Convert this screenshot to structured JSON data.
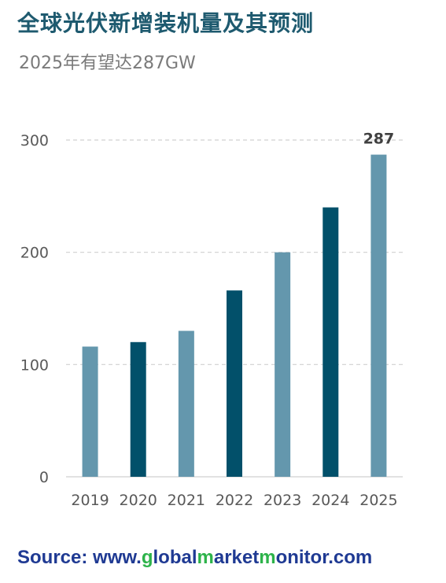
{
  "header": {
    "title": "全球光伏新增装机量及其预测",
    "subtitle": "2025年有望达287GW"
  },
  "footer": {
    "label": "Source:",
    "site_parts": [
      "www.",
      "g",
      "lobal",
      "m",
      "arket",
      "m",
      "onitor",
      ".com"
    ]
  },
  "chart_data": {
    "type": "bar",
    "title": "全球光伏新增装机量及其预测",
    "subtitle": "2025年有望达287GW",
    "categories": [
      "2019",
      "2020",
      "2021",
      "2022",
      "2023",
      "2024",
      "2025"
    ],
    "values": [
      116,
      120,
      130,
      166,
      200,
      240,
      287
    ],
    "colors": [
      "#6497ad",
      "#02506a",
      "#6497ad",
      "#02506a",
      "#6497ad",
      "#02506a",
      "#6497ad"
    ],
    "data_labels": [
      {
        "category": "2025",
        "text": "287"
      }
    ],
    "yticks": [
      0,
      100,
      200,
      300
    ],
    "ylim": [
      0,
      300
    ],
    "xlabel": "",
    "ylabel": "",
    "grid": true,
    "legend": "none"
  }
}
